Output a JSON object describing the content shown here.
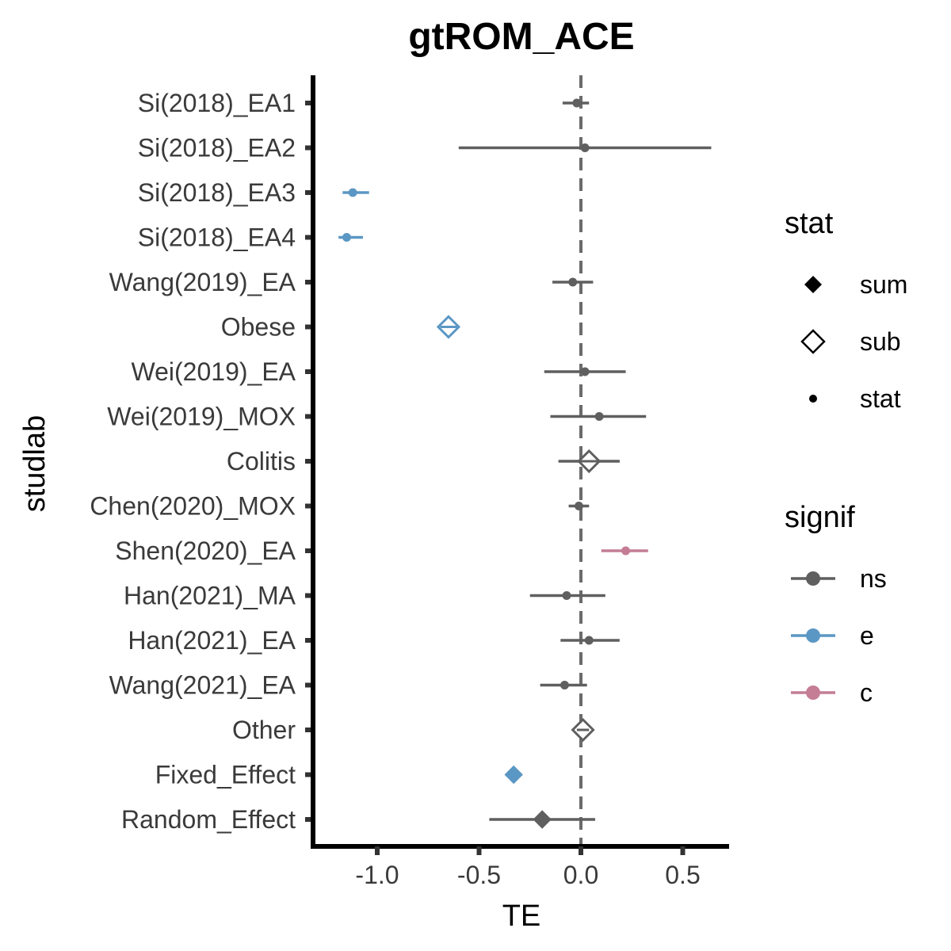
{
  "chart_data": {
    "type": "forest",
    "title": "gtROM_ACE",
    "xlabel": "TE",
    "ylabel": "studlab",
    "xlim": [
      -1.2,
      0.75
    ],
    "xticks": [
      -1.0,
      -0.5,
      0.0,
      0.5
    ],
    "xtick_labels": [
      "-1.0",
      "-0.5",
      "0.0",
      "0.5"
    ],
    "reference_line": 0.0,
    "reference_line_style": "dashed",
    "colors": {
      "ns": "#5f5f5f",
      "e": "#5b97c4",
      "c": "#c47d94"
    },
    "rows": [
      {
        "label": "Si(2018)_EA1",
        "te": -0.02,
        "lower": -0.09,
        "upper": 0.04,
        "stat": "stat",
        "signif": "ns"
      },
      {
        "label": "Si(2018)_EA2",
        "te": 0.02,
        "lower": -0.6,
        "upper": 0.64,
        "stat": "stat",
        "signif": "ns"
      },
      {
        "label": "Si(2018)_EA3",
        "te": -1.12,
        "lower": -1.17,
        "upper": -1.04,
        "stat": "stat",
        "signif": "e"
      },
      {
        "label": "Si(2018)_EA4",
        "te": -1.15,
        "lower": -1.19,
        "upper": -1.07,
        "stat": "stat",
        "signif": "e"
      },
      {
        "label": "Wang(2019)_EA",
        "te": -0.04,
        "lower": -0.14,
        "upper": 0.06,
        "stat": "stat",
        "signif": "ns"
      },
      {
        "label": "Obese",
        "te": -0.65,
        "lower": -0.69,
        "upper": -0.6,
        "stat": "sub",
        "signif": "e"
      },
      {
        "label": "Wei(2019)_EA",
        "te": 0.02,
        "lower": -0.18,
        "upper": 0.22,
        "stat": "stat",
        "signif": "ns"
      },
      {
        "label": "Wei(2019)_MOX",
        "te": 0.09,
        "lower": -0.15,
        "upper": 0.32,
        "stat": "stat",
        "signif": "ns"
      },
      {
        "label": "Colitis",
        "te": 0.04,
        "lower": -0.11,
        "upper": 0.19,
        "stat": "sub",
        "signif": "ns"
      },
      {
        "label": "Chen(2020)_MOX",
        "te": -0.01,
        "lower": -0.06,
        "upper": 0.04,
        "stat": "stat",
        "signif": "ns"
      },
      {
        "label": "Shen(2020)_EA",
        "te": 0.22,
        "lower": 0.1,
        "upper": 0.33,
        "stat": "stat",
        "signif": "c"
      },
      {
        "label": "Han(2021)_MA",
        "te": -0.07,
        "lower": -0.25,
        "upper": 0.12,
        "stat": "stat",
        "signif": "ns"
      },
      {
        "label": "Han(2021)_EA",
        "te": 0.04,
        "lower": -0.1,
        "upper": 0.19,
        "stat": "stat",
        "signif": "ns"
      },
      {
        "label": "Wang(2021)_EA",
        "te": -0.08,
        "lower": -0.2,
        "upper": 0.03,
        "stat": "stat",
        "signif": "ns"
      },
      {
        "label": "Other",
        "te": 0.01,
        "lower": -0.02,
        "upper": 0.04,
        "stat": "sub",
        "signif": "ns"
      },
      {
        "label": "Fixed_Effect",
        "te": -0.33,
        "lower": -0.34,
        "upper": -0.32,
        "stat": "sum",
        "signif": "e"
      },
      {
        "label": "Random_Effect",
        "te": -0.19,
        "lower": -0.45,
        "upper": 0.07,
        "stat": "sum",
        "signif": "ns"
      }
    ],
    "legend": {
      "position": "right",
      "stat_title": "stat",
      "stat_items": [
        {
          "label": "sum",
          "shape": "filled-diamond"
        },
        {
          "label": "sub",
          "shape": "open-diamond"
        },
        {
          "label": "stat",
          "shape": "dot"
        }
      ],
      "signif_title": "signif",
      "signif_items": [
        {
          "label": "ns",
          "color": "#5f5f5f"
        },
        {
          "label": "e",
          "color": "#5b97c4"
        },
        {
          "label": "c",
          "color": "#c47d94"
        }
      ]
    }
  }
}
